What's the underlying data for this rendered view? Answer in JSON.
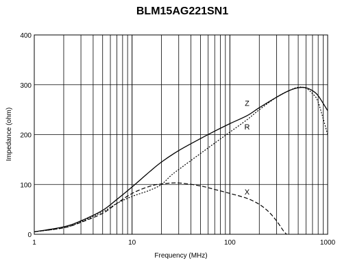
{
  "chart_data": {
    "type": "line",
    "title": "BLM15AG221SN1",
    "xlabel": "Frequency (MHz)",
    "ylabel": "Impedance (ohm)",
    "x_scale": "log",
    "xlim": [
      1,
      1000
    ],
    "ylim": [
      0,
      400
    ],
    "x_tick_labels": [
      "1",
      "10",
      "100",
      "1000"
    ],
    "y_tick_labels": [
      "0",
      "100",
      "200",
      "300",
      "400"
    ],
    "grid": true,
    "legend": "none",
    "series": [
      {
        "name": "Z",
        "style": "solid",
        "points": [
          [
            1,
            5
          ],
          [
            2,
            15
          ],
          [
            3,
            27
          ],
          [
            5,
            48
          ],
          [
            7,
            70
          ],
          [
            10,
            95
          ],
          [
            15,
            125
          ],
          [
            20,
            145
          ],
          [
            30,
            168
          ],
          [
            50,
            192
          ],
          [
            70,
            207
          ],
          [
            100,
            222
          ],
          [
            150,
            238
          ],
          [
            200,
            254
          ],
          [
            300,
            275
          ],
          [
            400,
            288
          ],
          [
            500,
            294
          ],
          [
            600,
            294
          ],
          [
            700,
            288
          ],
          [
            800,
            278
          ],
          [
            1000,
            248
          ]
        ]
      },
      {
        "name": "R",
        "style": "dotted",
        "points": [
          [
            1,
            5
          ],
          [
            2,
            13
          ],
          [
            3,
            25
          ],
          [
            5,
            45
          ],
          [
            7,
            62
          ],
          [
            10,
            76
          ],
          [
            15,
            88
          ],
          [
            20,
            100
          ],
          [
            25,
            118
          ],
          [
            30,
            130
          ],
          [
            50,
            162
          ],
          [
            70,
            183
          ],
          [
            100,
            205
          ],
          [
            150,
            230
          ],
          [
            200,
            250
          ],
          [
            300,
            275
          ],
          [
            400,
            288
          ],
          [
            500,
            295
          ],
          [
            600,
            293
          ],
          [
            700,
            282
          ],
          [
            800,
            265
          ],
          [
            1000,
            200
          ]
        ]
      },
      {
        "name": "X",
        "style": "dashed",
        "points": [
          [
            1,
            5
          ],
          [
            2,
            13
          ],
          [
            3,
            24
          ],
          [
            5,
            42
          ],
          [
            7,
            62
          ],
          [
            10,
            82
          ],
          [
            15,
            96
          ],
          [
            20,
            101
          ],
          [
            30,
            103
          ],
          [
            50,
            97
          ],
          [
            70,
            90
          ],
          [
            100,
            82
          ],
          [
            150,
            72
          ],
          [
            200,
            60
          ],
          [
            250,
            45
          ],
          [
            300,
            27
          ],
          [
            350,
            8
          ],
          [
            380,
            0
          ]
        ]
      }
    ],
    "annotations": [
      {
        "text": "Z",
        "x": 150,
        "y": 258
      },
      {
        "text": "R",
        "x": 150,
        "y": 210
      },
      {
        "text": "X",
        "x": 150,
        "y": 80
      }
    ]
  }
}
